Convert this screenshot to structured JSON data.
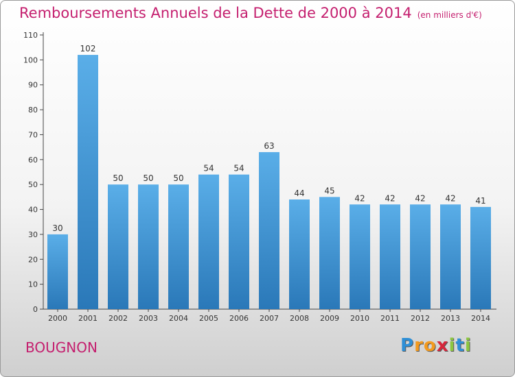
{
  "chart_data": {
    "type": "bar",
    "title": "Remboursements Annuels de la Dette de 2000 à 2014",
    "unit_note": "(en milliers d'€)",
    "categories": [
      "2000",
      "2001",
      "2002",
      "2003",
      "2004",
      "2005",
      "2006",
      "2007",
      "2008",
      "2009",
      "2010",
      "2011",
      "2012",
      "2013",
      "2014"
    ],
    "values": [
      30,
      102,
      50,
      50,
      50,
      54,
      54,
      63,
      44,
      45,
      42,
      42,
      42,
      42,
      41
    ],
    "yticks": [
      0,
      10,
      20,
      30,
      40,
      50,
      60,
      70,
      80,
      90,
      100,
      110
    ],
    "ylim": [
      0,
      110
    ],
    "xlabel": "",
    "ylabel": "",
    "grid": false,
    "bar_color_top": "#5aaee8",
    "bar_color_bottom": "#2a78b8"
  },
  "footer": {
    "town": "BOUGNON",
    "logo_letters": [
      "P",
      "r",
      "o",
      "x",
      "i",
      "t",
      "i"
    ],
    "logo_colors": [
      "#2e8fd6",
      "#f39a1e",
      "#f39a1e",
      "#d6263b",
      "#8cc63f",
      "#2e8fd6",
      "#8cc63f"
    ]
  }
}
